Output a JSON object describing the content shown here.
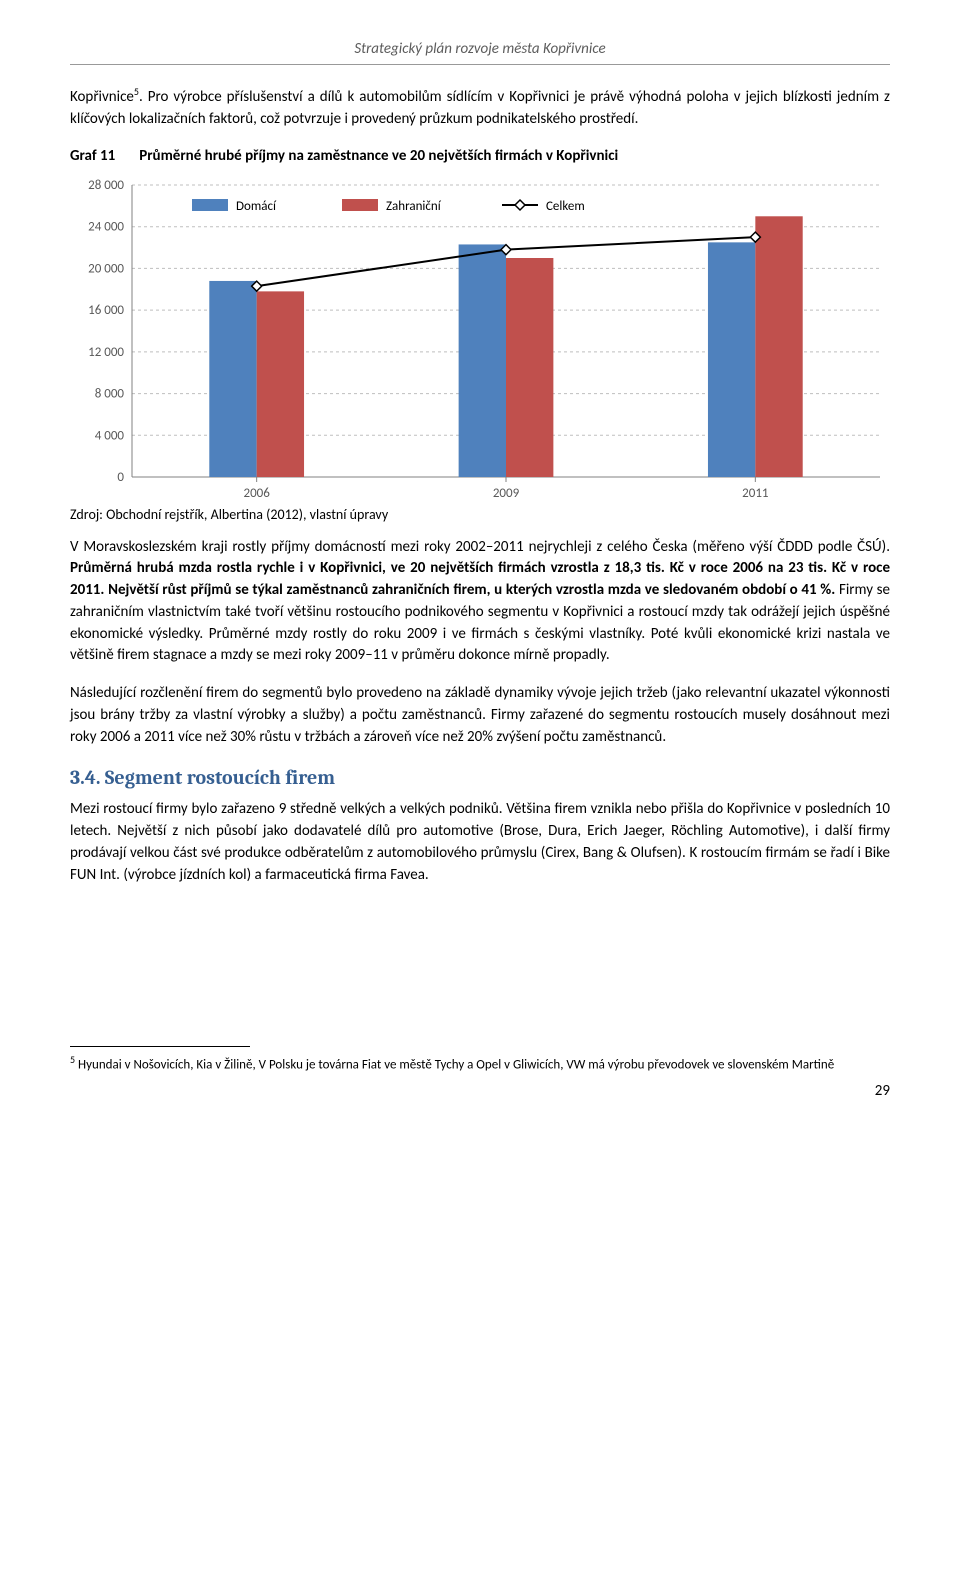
{
  "header": {
    "running_title": "Strategický plán rozvoje města Kopřivnice"
  },
  "paragraphs": {
    "p1_a": "Kopřivnice",
    "p1_sup": "5",
    "p1_b": ". Pro výrobce příslušenství a dílů k automobilům sídlícím v Kopřivnici je právě výhodná poloha v jejich blízkosti jedním z klíčových lokalizačních faktorů, což potvrzuje i provedený průzkum podnikatelského prostředí.",
    "p2_a": "V Moravskoslezském kraji rostly příjmy domácností mezi roky 2002–2011 nejrychleji z celého Česka (měřeno výší ČDDD podle ČSÚ). ",
    "p2_b": "Průměrná hrubá mzda rostla rychle i v Kopřivnici, ve 20 největších firmách vzrostla z 18,3 tis. Kč v roce 2006 na 23 tis. Kč v roce 2011. Největší růst příjmů se týkal zaměstnanců zahraničních firem, u kterých vzrostla mzda ve sledovaném období o 41 %.",
    "p2_c": " Firmy se zahraničním vlastnictvím také tvoří většinu rostoucího podnikového segmentu v Kopřivnici a rostoucí mzdy tak odrážejí jejich úspěšné ekonomické výsledky. Průměrné mzdy rostly do roku 2009 i ve firmách s českými vlastníky. Poté kvůli ekonomické krizi nastala ve většině firem stagnace a mzdy se mezi roky 2009–11 v průměru dokonce mírně propadly.",
    "p3": "Následující rozčlenění firem do segmentů bylo provedeno na základě dynamiky vývoje jejich tržeb (jako relevantní ukazatel výkonnosti jsou brány tržby za vlastní výrobky a služby) a počtu zaměstnanců. Firmy zařazené do segmentu rostoucích musely dosáhnout mezi roky 2006 a 2011 více než 30% růstu v tržbách a zároveň více než 20% zvýšení počtu zaměstnanců.",
    "p4": "Mezi rostoucí firmy bylo zařazeno 9 středně velkých a velkých podniků. Většina firem vznikla nebo přišla do Kopřivnice v posledních 10 letech. Největší z nich působí jako dodavatelé dílů pro automotive (Brose, Dura, Erich Jaeger, Röchling Automotive), i další firmy prodávají velkou část své produkce odběratelům z automobilového průmyslu (Cirex, Bang & Olufsen). K rostoucím firmám se řadí i Bike FUN Int. (výrobce jízdních kol) a farmaceutická firma Favea."
  },
  "figure": {
    "label": "Graf 11",
    "title": "Průměrné hrubé příjmy na zaměstnance ve 20 největších firmách v Kopřivnici",
    "source": "Zdroj: Obchodní rejstřík, Albertina (2012), vlastní úpravy"
  },
  "chart": {
    "type": "bar+line",
    "categories": [
      "2006",
      "2009",
      "2011"
    ],
    "series": {
      "domaci": {
        "label": "Domácí",
        "color": "#4f81bd",
        "values": [
          18800,
          22300,
          22500
        ]
      },
      "zahranicni": {
        "label": "Zahraniční",
        "color": "#c0504d",
        "values": [
          17800,
          21000,
          25000
        ]
      },
      "celkem": {
        "label": "Celkem",
        "color": "#000000",
        "values": [
          18300,
          21800,
          23000
        ]
      }
    },
    "y_axis": {
      "min": 0,
      "max": 28000,
      "step": 4000,
      "ticks": [
        "0",
        "4 000",
        "8 000",
        "12 000",
        "16 000",
        "20 000",
        "24 000",
        "28 000"
      ]
    },
    "grid_color": "#bfbfbf",
    "axis_color": "#808080",
    "background": "#ffffff",
    "marker": {
      "shape": "diamond",
      "fill": "#ffffff",
      "stroke": "#000000",
      "size": 10
    },
    "bar_group_width": 0.38,
    "font_size": 13
  },
  "section": {
    "number": "3.4.",
    "title": "Segment rostoucích firem"
  },
  "footnote": {
    "mark": "5",
    "text": " Hyundai v Nošovicích, Kia v Žilině, V Polsku je továrna Fiat ve městě Tychy a Opel v Gliwicích, VW má výrobu převodovek ve slovenském Martině"
  },
  "page_number": "29"
}
